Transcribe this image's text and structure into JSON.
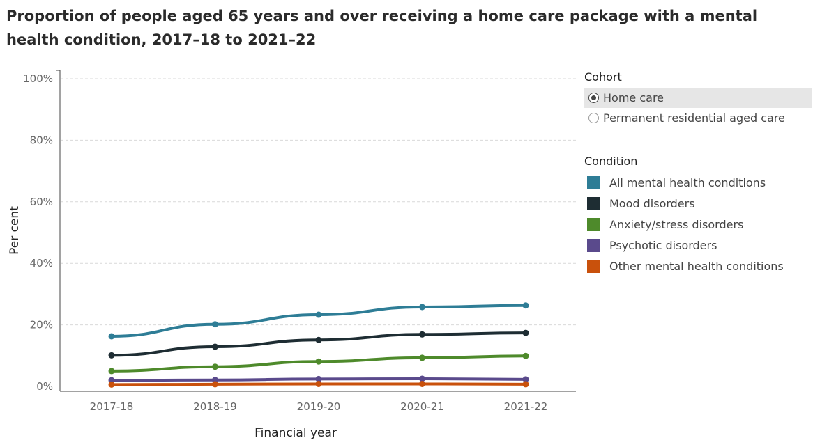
{
  "title": "Proportion of people aged 65 years and over receiving a home care package with a mental health condition, 2017–18 to 2021–22",
  "cohort_legend": {
    "heading": "Cohort",
    "options": [
      {
        "label": "Home care",
        "selected": true
      },
      {
        "label": "Permanent residential aged care",
        "selected": false
      }
    ]
  },
  "condition_legend": {
    "heading": "Condition",
    "items": [
      {
        "label": "All mental health conditions",
        "color": "#2e7d96"
      },
      {
        "label": "Mood disorders",
        "color": "#1e2d33"
      },
      {
        "label": "Anxiety/stress disorders",
        "color": "#4e8a2b"
      },
      {
        "label": "Psychotic disorders",
        "color": "#5a4a8c"
      },
      {
        "label": "Other mental health conditions",
        "color": "#c9510c"
      }
    ]
  },
  "chart_data": {
    "type": "line",
    "title": "Proportion of people aged 65 years and over receiving a home care package with a mental health condition, 2017–18 to 2021–22",
    "xlabel": "Financial year",
    "ylabel": "Per cent",
    "categories": [
      "2017-18",
      "2018-19",
      "2019-20",
      "2020-21",
      "2021-22"
    ],
    "ylim": [
      0,
      100
    ],
    "yticks": [
      0,
      20,
      40,
      60,
      80,
      100
    ],
    "ytick_labels": [
      "0%",
      "20%",
      "40%",
      "60%",
      "80%",
      "100%"
    ],
    "grid": true,
    "series": [
      {
        "name": "All mental health conditions",
        "color": "#2e7d96",
        "values": [
          16.3,
          20.2,
          23.3,
          25.8,
          26.3
        ]
      },
      {
        "name": "Mood disorders",
        "color": "#1e2d33",
        "values": [
          10.1,
          12.9,
          15.1,
          16.9,
          17.4
        ]
      },
      {
        "name": "Anxiety/stress disorders",
        "color": "#4e8a2b",
        "values": [
          5.0,
          6.4,
          8.1,
          9.3,
          9.9
        ]
      },
      {
        "name": "Psychotic disorders",
        "color": "#5a4a8c",
        "values": [
          2.0,
          2.1,
          2.4,
          2.5,
          2.3
        ]
      },
      {
        "name": "Other mental health conditions",
        "color": "#c9510c",
        "values": [
          0.6,
          0.7,
          0.8,
          0.8,
          0.7
        ]
      }
    ]
  }
}
